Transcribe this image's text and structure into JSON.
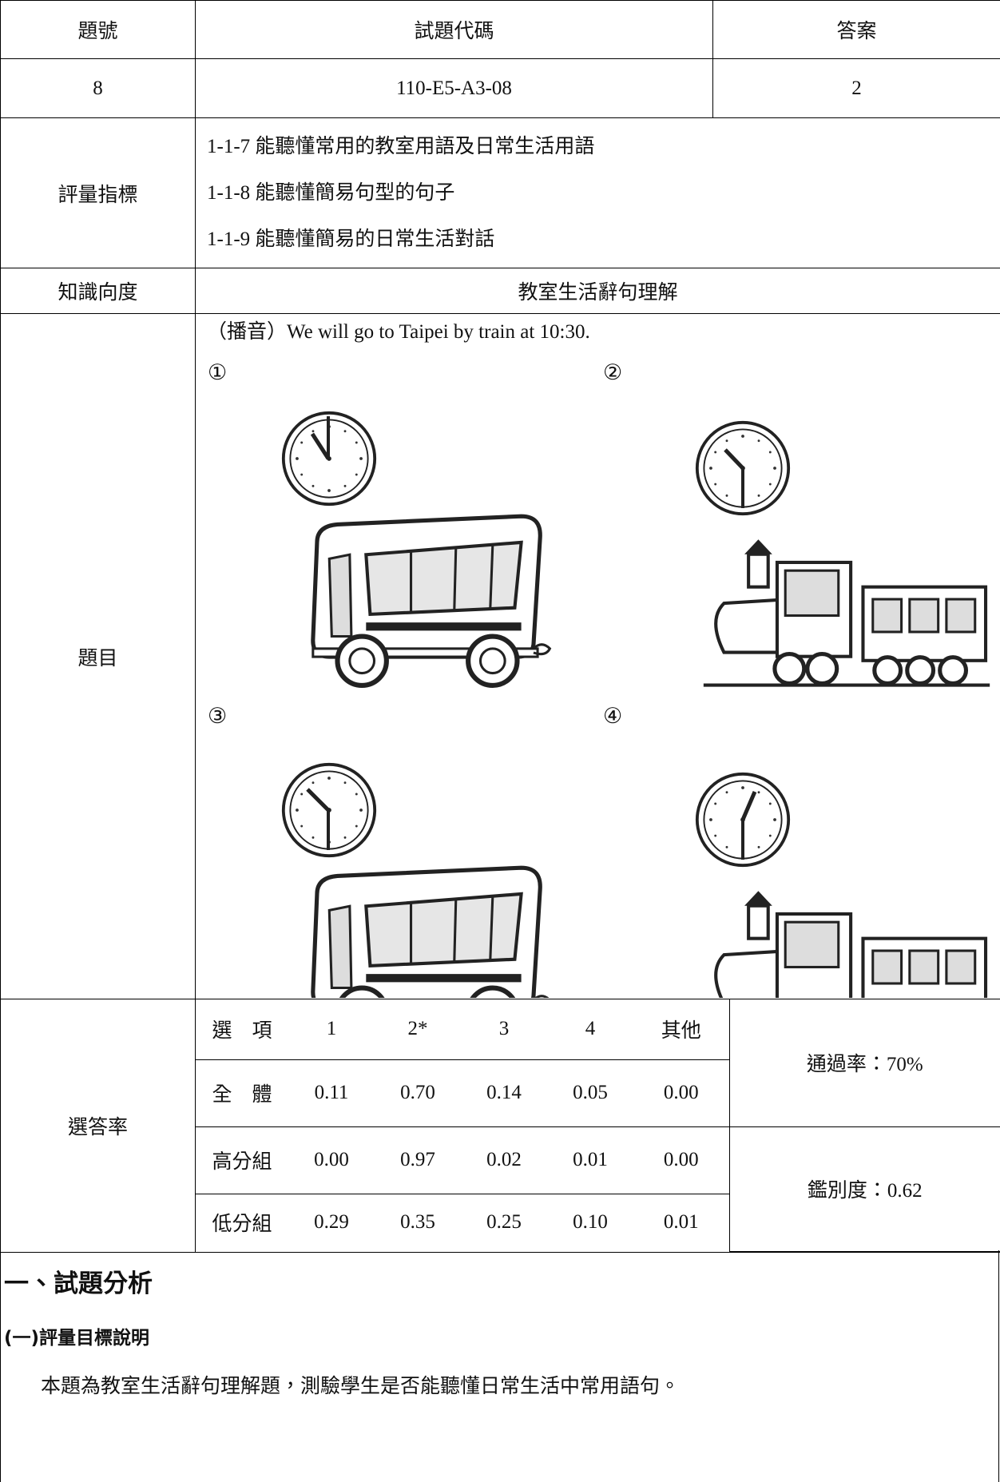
{
  "table": {
    "header": [
      "題號",
      "試題代碼",
      "答案"
    ],
    "item": {
      "number": "8",
      "code": "110-E5-A3-08",
      "answer": "2"
    },
    "indicators": {
      "label": "評量指標",
      "items": [
        "1-1-7 能聽懂常用的教室用語及日常生活用語",
        "1-1-8 能聽懂簡易句型的句子",
        "1-1-9 能聽懂簡易的日常生活對話"
      ]
    },
    "knowledge": {
      "label": "知識向度",
      "value": "教室生活辭句理解"
    },
    "question": {
      "label": "題目",
      "prompt": "（播音）We will go to Taipei by train at 10:30.",
      "options": [
        "①",
        "②",
        "③",
        "④"
      ]
    },
    "rates": {
      "label": "選答率",
      "header": [
        "選　項",
        "1",
        "2*",
        "3",
        "4",
        "其他"
      ],
      "rows": [
        [
          "全　體",
          "0.11",
          "0.70",
          "0.14",
          "0.05",
          "0.00"
        ],
        [
          "高分組",
          "0.00",
          "0.97",
          "0.02",
          "0.01",
          "0.00"
        ],
        [
          "低分組",
          "0.29",
          "0.35",
          "0.25",
          "0.10",
          "0.01"
        ]
      ],
      "pass_rate": "通過率：70%",
      "discrimination": "鑑別度：0.62"
    }
  },
  "analysis": {
    "heading": "一、試題分析",
    "subheading": "(一)評量目標說明",
    "body": "本題為教室生活辭句理解題，測驗學生是否能聽懂日常生活中常用語句。"
  }
}
